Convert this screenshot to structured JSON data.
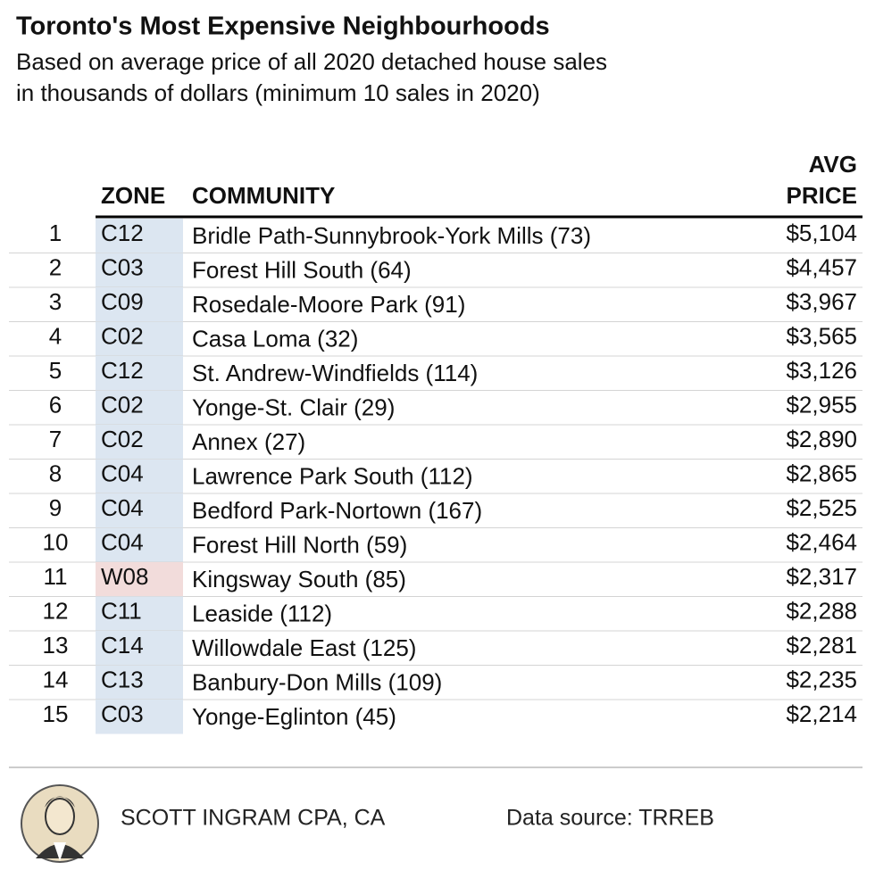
{
  "header": {
    "title": "Toronto's Most Expensive Neighbourhoods",
    "subtitle": [
      "Based on average price of all 2020 detached house sales",
      "in thousands of dollars (minimum 10 sales in 2020)"
    ]
  },
  "table": {
    "columns": {
      "zone": "ZONE",
      "community": "COMMUNITY",
      "price": [
        "AVG",
        "PRICE"
      ]
    },
    "rows": [
      {
        "rank": 1,
        "zone": "C12",
        "community": "Bridle Path-Sunnybrook-York Mills (73)",
        "price": "$5,104",
        "zone_color": "#dce6f1"
      },
      {
        "rank": 2,
        "zone": "C03",
        "community": "Forest Hill South (64)",
        "price": "$4,457",
        "zone_color": "#dce6f1"
      },
      {
        "rank": 3,
        "zone": "C09",
        "community": "Rosedale-Moore Park (91)",
        "price": "$3,967",
        "zone_color": "#dce6f1"
      },
      {
        "rank": 4,
        "zone": "C02",
        "community": "Casa Loma (32)",
        "price": "$3,565",
        "zone_color": "#dce6f1"
      },
      {
        "rank": 5,
        "zone": "C12",
        "community": "St. Andrew-Windfields (114)",
        "price": "$3,126",
        "zone_color": "#dce6f1"
      },
      {
        "rank": 6,
        "zone": "C02",
        "community": "Yonge-St. Clair (29)",
        "price": "$2,955",
        "zone_color": "#dce6f1"
      },
      {
        "rank": 7,
        "zone": "C02",
        "community": "Annex (27)",
        "price": "$2,890",
        "zone_color": "#dce6f1"
      },
      {
        "rank": 8,
        "zone": "C04",
        "community": "Lawrence Park South (112)",
        "price": "$2,865",
        "zone_color": "#dce6f1"
      },
      {
        "rank": 9,
        "zone": "C04",
        "community": "Bedford Park-Nortown (167)",
        "price": "$2,525",
        "zone_color": "#dce6f1"
      },
      {
        "rank": 10,
        "zone": "C04",
        "community": "Forest Hill North (59)",
        "price": "$2,464",
        "zone_color": "#dce6f1"
      },
      {
        "rank": 11,
        "zone": "W08",
        "community": "Kingsway South (85)",
        "price": "$2,317",
        "zone_color": "#f2dcdb"
      },
      {
        "rank": 12,
        "zone": "C11",
        "community": "Leaside (112)",
        "price": "$2,288",
        "zone_color": "#dce6f1"
      },
      {
        "rank": 13,
        "zone": "C14",
        "community": "Willowdale East (125)",
        "price": "$2,281",
        "zone_color": "#dce6f1"
      },
      {
        "rank": 14,
        "zone": "C13",
        "community": "Banbury-Don Mills (109)",
        "price": "$2,235",
        "zone_color": "#dce6f1"
      },
      {
        "rank": 15,
        "zone": "C03",
        "community": "Yonge-Eglinton (45)",
        "price": "$2,214",
        "zone_color": "#dce6f1"
      }
    ]
  },
  "footer": {
    "author": "SCOTT INGRAM CPA, CA",
    "source": "Data source: TRREB"
  }
}
